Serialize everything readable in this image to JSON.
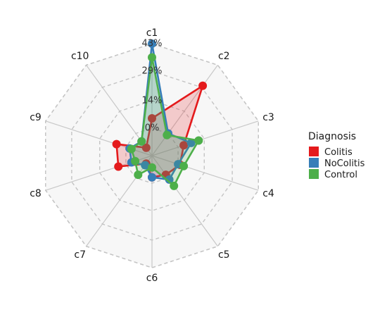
{
  "chart_data": {
    "type": "radar",
    "axes": [
      "c1",
      "c2",
      "c3",
      "c4",
      "c5",
      "c6",
      "c7",
      "c8",
      "c9",
      "c10"
    ],
    "radial_ticks": [
      {
        "value": 0,
        "label": "0%"
      },
      {
        "value": 14,
        "label": "14%"
      },
      {
        "value": 29,
        "label": "29%"
      },
      {
        "value": 43,
        "label": "43%"
      }
    ],
    "rlim": [
      -14,
      43
    ],
    "grid": true,
    "legend": {
      "title": "Diagnosis",
      "position": "right"
    },
    "series": [
      {
        "name": "Colitis",
        "color": "#E41A1C",
        "values": [
          5,
          30,
          3,
          1,
          -2,
          -3,
          -9,
          4,
          5,
          -9
        ]
      },
      {
        "name": "NoColitis",
        "color": "#377EB8",
        "values": [
          43,
          0,
          7,
          0,
          1,
          -3,
          -8,
          -3,
          -2,
          -5
        ]
      },
      {
        "name": "Control",
        "color": "#4DAF4A",
        "values": [
          36,
          -1,
          11,
          3,
          5,
          -8,
          -2,
          -5,
          -3,
          -5
        ]
      }
    ]
  }
}
